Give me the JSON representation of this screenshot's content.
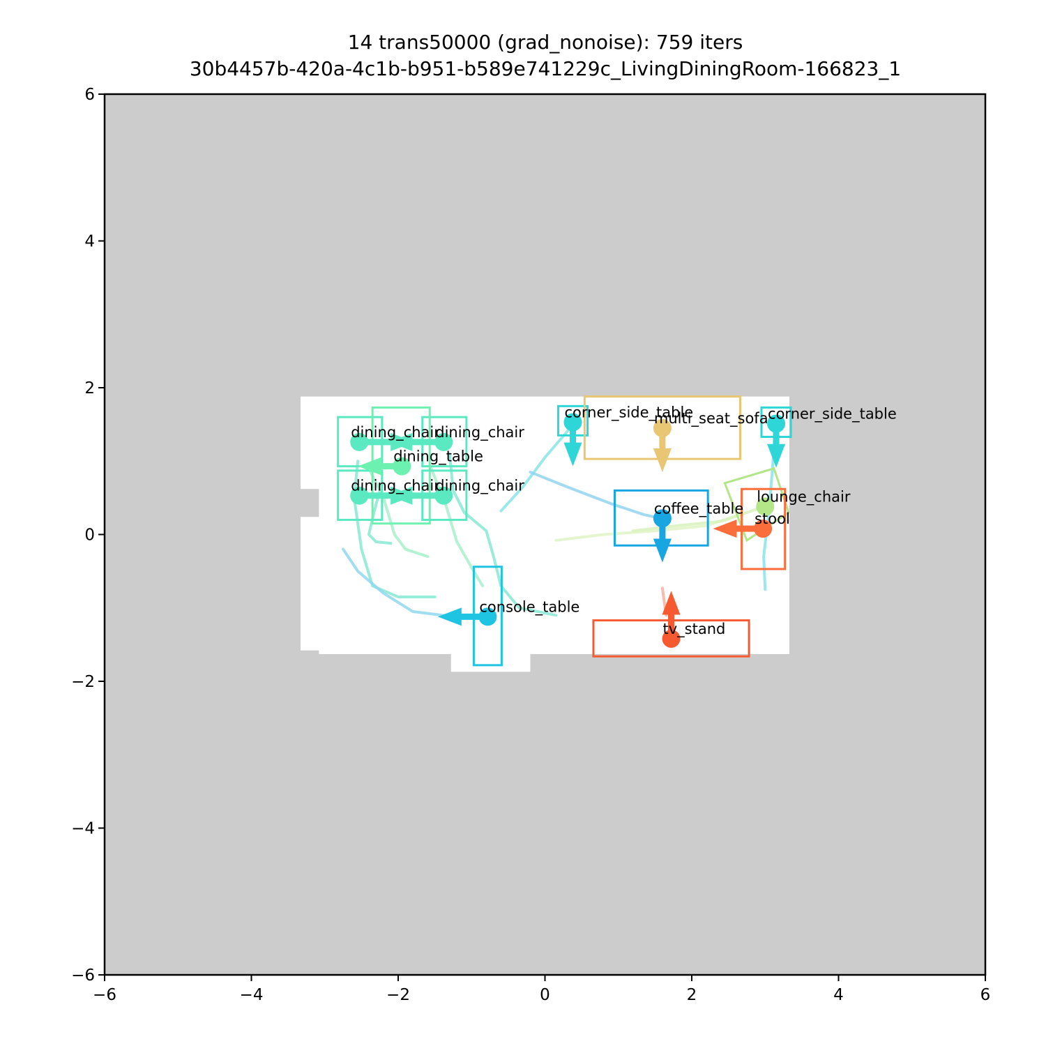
{
  "chart_data": {
    "type": "scatter",
    "title_lines": [
      "14 trans50000 (grad_nonoise): 759 iters",
      "30b4457b-420a-4c1b-b951-b589e741229c_LivingDiningRoom-166823_1"
    ],
    "xlabel": "",
    "ylabel": "",
    "xlim": [
      -6,
      6
    ],
    "ylim": [
      -6,
      6
    ],
    "xticks": [
      -6,
      -4,
      -2,
      0,
      2,
      4,
      6
    ],
    "yticks": [
      -6,
      -4,
      -2,
      0,
      2,
      4,
      6
    ],
    "tick_labels_x": [
      "−6",
      "−4",
      "−2",
      "0",
      "2",
      "4",
      "6"
    ],
    "tick_labels_y": [
      "−6",
      "−4",
      "−2",
      "0",
      "2",
      "4",
      "6"
    ],
    "grid": false,
    "background_color": "#cccccc",
    "floor_color": "#ffffff",
    "floor_polygon": [
      [
        -3.33,
        1.88
      ],
      [
        3.33,
        1.88
      ],
      [
        3.33,
        -1.63
      ],
      [
        -0.2,
        -1.63
      ],
      [
        -0.2,
        -1.87
      ],
      [
        -1.28,
        -1.87
      ],
      [
        -1.28,
        -1.63
      ],
      [
        -3.08,
        -1.63
      ],
      [
        -3.08,
        -1.58
      ],
      [
        -3.33,
        -1.58
      ],
      [
        -3.33,
        0.24
      ],
      [
        -3.08,
        0.24
      ],
      [
        -3.08,
        0.62
      ],
      [
        -3.33,
        0.62
      ]
    ],
    "objects": [
      {
        "label": "dining_chair",
        "color": "#5ae9c0",
        "x": -2.53,
        "y": 1.26,
        "bbox": [
          [
            -2.82,
            0.93
          ],
          [
            -2.22,
            0.93
          ],
          [
            -2.22,
            1.6
          ],
          [
            -2.82,
            1.6
          ]
        ],
        "arrow_dx": 0.75,
        "arrow_dy": 0.0
      },
      {
        "label": "dining_chair",
        "color": "#5ae9c0",
        "x": -1.38,
        "y": 1.26,
        "bbox": [
          [
            -1.67,
            0.93
          ],
          [
            -1.07,
            0.93
          ],
          [
            -1.07,
            1.6
          ],
          [
            -1.67,
            1.6
          ]
        ],
        "arrow_dx": -0.75,
        "arrow_dy": 0.0
      },
      {
        "label": "dining_table",
        "color": "#6cf1b0",
        "x": -1.95,
        "y": 0.93,
        "bbox": [
          [
            -2.35,
            0.15
          ],
          [
            -1.57,
            0.15
          ],
          [
            -1.57,
            1.73
          ],
          [
            -2.35,
            1.73
          ]
        ],
        "arrow_dx": -0.6,
        "arrow_dy": 0.0
      },
      {
        "label": "dining_chair",
        "color": "#5ae9c0",
        "x": -2.53,
        "y": 0.53,
        "bbox": [
          [
            -2.82,
            0.2
          ],
          [
            -2.22,
            0.2
          ],
          [
            -2.22,
            0.87
          ],
          [
            -2.82,
            0.87
          ]
        ],
        "arrow_dx": 0.75,
        "arrow_dy": 0.0
      },
      {
        "label": "dining_chair",
        "color": "#5ae9c0",
        "x": -1.38,
        "y": 0.53,
        "bbox": [
          [
            -1.67,
            0.2
          ],
          [
            -1.07,
            0.2
          ],
          [
            -1.07,
            0.87
          ],
          [
            -1.67,
            0.87
          ]
        ],
        "arrow_dx": -0.75,
        "arrow_dy": 0.0
      },
      {
        "label": "corner_side_table",
        "color": "#2ed6d8",
        "x": 0.38,
        "y": 1.53,
        "bbox": [
          [
            0.18,
            1.35
          ],
          [
            0.58,
            1.35
          ],
          [
            0.58,
            1.75
          ],
          [
            0.18,
            1.75
          ]
        ],
        "arrow_dx": 0.0,
        "arrow_dy": -0.6
      },
      {
        "label": "multi_seat_sofa",
        "color": "#e9c673",
        "x": 1.6,
        "y": 1.45,
        "bbox": [
          [
            0.54,
            1.03
          ],
          [
            2.66,
            1.03
          ],
          [
            2.66,
            1.88
          ],
          [
            0.54,
            1.88
          ]
        ],
        "arrow_dx": 0.0,
        "arrow_dy": -0.6
      },
      {
        "label": "corner_side_table",
        "color": "#2ed6d8",
        "x": 3.15,
        "y": 1.51,
        "bbox": [
          [
            2.95,
            1.33
          ],
          [
            3.35,
            1.33
          ],
          [
            3.35,
            1.73
          ],
          [
            2.95,
            1.73
          ]
        ],
        "arrow_dx": 0.0,
        "arrow_dy": -0.6
      },
      {
        "label": "lounge_chair",
        "color": "#b3e687",
        "x": 3.0,
        "y": 0.38,
        "bbox": [
          [
            2.45,
            0.7
          ],
          [
            3.12,
            0.9
          ],
          [
            3.32,
            0.3
          ],
          [
            2.75,
            -0.08
          ]
        ],
        "arrow_dx": 0.0,
        "arrow_dy": 0.0
      },
      {
        "label": "coffee_table",
        "color": "#18a6e2",
        "x": 1.6,
        "y": 0.22,
        "bbox": [
          [
            0.95,
            -0.15
          ],
          [
            2.22,
            -0.15
          ],
          [
            2.22,
            0.6
          ],
          [
            0.95,
            0.6
          ]
        ],
        "arrow_dx": 0.0,
        "arrow_dy": -0.6
      },
      {
        "label": "stool",
        "color": "#fb6d3b",
        "x": 2.97,
        "y": 0.08,
        "bbox": [
          [
            2.68,
            -0.47
          ],
          [
            3.27,
            -0.47
          ],
          [
            3.27,
            0.62
          ],
          [
            2.68,
            0.62
          ]
        ],
        "arrow_dx": -0.68,
        "arrow_dy": 0.0
      },
      {
        "label": "console_table",
        "color": "#1fc4e3",
        "x": -0.78,
        "y": -1.12,
        "bbox": [
          [
            -0.97,
            -1.78
          ],
          [
            -0.59,
            -1.78
          ],
          [
            -0.59,
            -0.44
          ],
          [
            -0.97,
            -0.44
          ]
        ],
        "arrow_dx": -0.68,
        "arrow_dy": 0.0
      },
      {
        "label": "tv_stand",
        "color": "#f65a31",
        "x": 1.72,
        "y": -1.42,
        "bbox": [
          [
            0.66,
            -1.66
          ],
          [
            2.78,
            -1.66
          ],
          [
            2.78,
            -1.17
          ],
          [
            0.66,
            -1.17
          ]
        ],
        "arrow_dx": 0.0,
        "arrow_dy": 0.65
      }
    ],
    "trajectories": [
      {
        "color": "#88e9d3",
        "points": [
          [
            -2.25,
            0.6
          ],
          [
            -2.33,
            0.3
          ],
          [
            -2.4,
            0.0
          ],
          [
            -2.3,
            -0.1
          ],
          [
            -2.1,
            -0.12
          ]
        ]
      },
      {
        "color": "#88e9d3",
        "points": [
          [
            -2.55,
            1.0
          ],
          [
            -2.6,
            0.5
          ],
          [
            -2.5,
            -0.2
          ],
          [
            -2.35,
            -0.7
          ],
          [
            -2.0,
            -0.85
          ],
          [
            -1.5,
            -0.85
          ]
        ]
      },
      {
        "color": "#a7f0cb",
        "points": [
          [
            -2.4,
            0.9
          ],
          [
            -2.2,
            0.5
          ],
          [
            -2.05,
            0.0
          ],
          [
            -1.9,
            -0.2
          ],
          [
            -1.6,
            -0.3
          ]
        ]
      },
      {
        "color": "#88e9d3",
        "points": [
          [
            -1.3,
            1.1
          ],
          [
            -1.25,
            0.6
          ],
          [
            -1.1,
            0.3
          ],
          [
            -0.8,
            0.05
          ],
          [
            -0.7,
            -0.3
          ],
          [
            -0.6,
            -0.7
          ],
          [
            -0.35,
            -1.0
          ],
          [
            0.15,
            -1.1
          ]
        ]
      },
      {
        "color": "#a7f0cb",
        "points": [
          [
            -1.55,
            0.9
          ],
          [
            -1.35,
            0.4
          ],
          [
            -1.2,
            -0.1
          ],
          [
            -1.0,
            -0.45
          ],
          [
            -0.85,
            -0.7
          ]
        ]
      },
      {
        "color": "#8fd7ee",
        "points": [
          [
            -2.75,
            -0.2
          ],
          [
            -2.55,
            -0.5
          ],
          [
            -2.2,
            -0.8
          ],
          [
            -1.8,
            -1.05
          ],
          [
            -1.4,
            -1.1
          ],
          [
            -1.1,
            -1.12
          ]
        ]
      },
      {
        "color": "#8ae4e6",
        "points": [
          [
            -0.6,
            0.32
          ],
          [
            -0.3,
            0.65
          ],
          [
            0.0,
            1.05
          ],
          [
            0.3,
            1.4
          ],
          [
            0.38,
            1.5
          ]
        ]
      },
      {
        "color": "#92d4ef",
        "points": [
          [
            -0.2,
            0.85
          ],
          [
            0.3,
            0.65
          ],
          [
            0.9,
            0.42
          ],
          [
            1.35,
            0.27
          ],
          [
            1.58,
            0.22
          ]
        ]
      },
      {
        "color": "#e1f5c6",
        "points": [
          [
            0.15,
            -0.08
          ],
          [
            0.8,
            0.0
          ],
          [
            1.5,
            0.05
          ],
          [
            2.2,
            0.12
          ],
          [
            2.75,
            0.3
          ]
        ]
      },
      {
        "color": "#d8f2bc",
        "points": [
          [
            1.2,
            0.05
          ],
          [
            1.8,
            0.12
          ],
          [
            2.4,
            0.18
          ],
          [
            2.9,
            0.35
          ]
        ]
      },
      {
        "color": "#8ae4e6",
        "points": [
          [
            3.0,
            -0.75
          ],
          [
            2.98,
            -0.3
          ],
          [
            3.05,
            0.3
          ],
          [
            3.1,
            0.9
          ],
          [
            3.14,
            1.45
          ]
        ]
      },
      {
        "color": "#f5b0a0",
        "points": [
          [
            1.6,
            -0.73
          ],
          [
            1.63,
            -0.95
          ],
          [
            1.65,
            -1.1
          ]
        ]
      }
    ]
  }
}
